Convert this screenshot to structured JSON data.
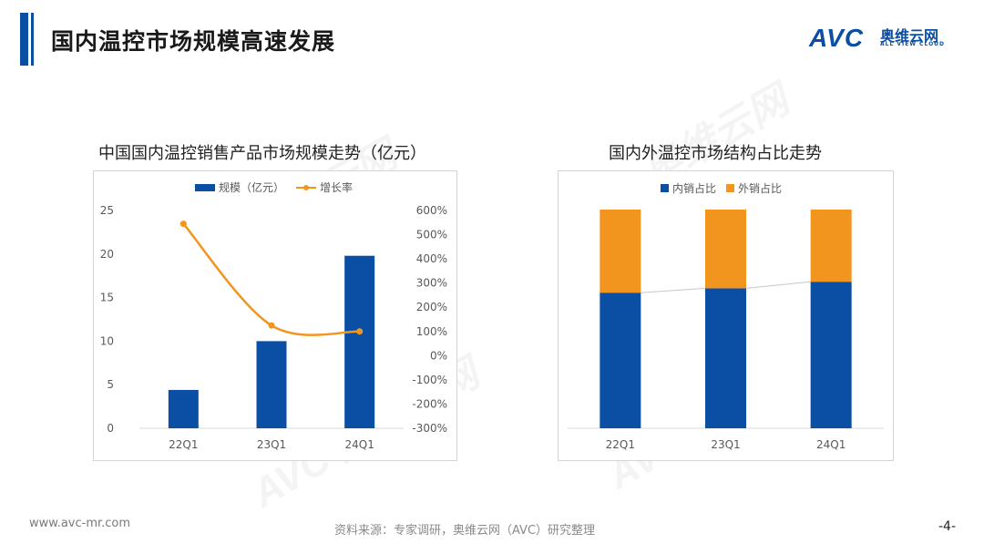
{
  "header": {
    "title": "国内温控市场规模高速发展",
    "logo_mark": "AVC",
    "logo_cn": "奥维云网",
    "logo_en": "ALL VIEW CLOUD"
  },
  "watermark": {
    "text": "AVC 奥维云网"
  },
  "colors": {
    "blue": "#0b4fa5",
    "orange": "#f2951f",
    "axis_text": "#595959",
    "grid": "#d9d9d9"
  },
  "chart_data": [
    {
      "type": "bar",
      "title": "中国国内温控销售产品市场规模走势（亿元）",
      "categories": [
        "22Q1",
        "23Q1",
        "24Q1"
      ],
      "series": [
        {
          "name": "规模（亿元）",
          "type": "bar",
          "values": [
            4.4,
            10.0,
            19.8
          ],
          "axis": "left"
        },
        {
          "name": "增长率",
          "type": "line",
          "values": [
            5.45,
            1.25,
            1.0
          ],
          "axis": "right"
        }
      ],
      "left_axis": {
        "ylim": [
          0,
          25
        ],
        "ticks": [
          "25",
          "20",
          "15",
          "10",
          "5",
          "0"
        ]
      },
      "right_axis": {
        "ylim": [
          -3,
          6
        ],
        "ticks": [
          "600%",
          "500%",
          "400%",
          "300%",
          "200%",
          "100%",
          "0%",
          "-100%",
          "-200%",
          "-300%"
        ]
      },
      "legend": [
        "规模（亿元）",
        "增长率"
      ]
    },
    {
      "type": "bar",
      "stacked": true,
      "title": "国内外温控市场结构占比走势",
      "categories": [
        "22Q1",
        "23Q1",
        "24Q1"
      ],
      "series": [
        {
          "name": "内销占比",
          "values": [
            62,
            64,
            67
          ]
        },
        {
          "name": "外销占比",
          "values": [
            38,
            36,
            33
          ]
        }
      ],
      "ylim": [
        0,
        100
      ],
      "legend": [
        "内销占比",
        "外销占比"
      ]
    }
  ],
  "footer": {
    "url": "www.avc-mr.com",
    "source": "资料来源：专家调研，奥维云网（AVC）研究整理",
    "page": "-4-"
  }
}
